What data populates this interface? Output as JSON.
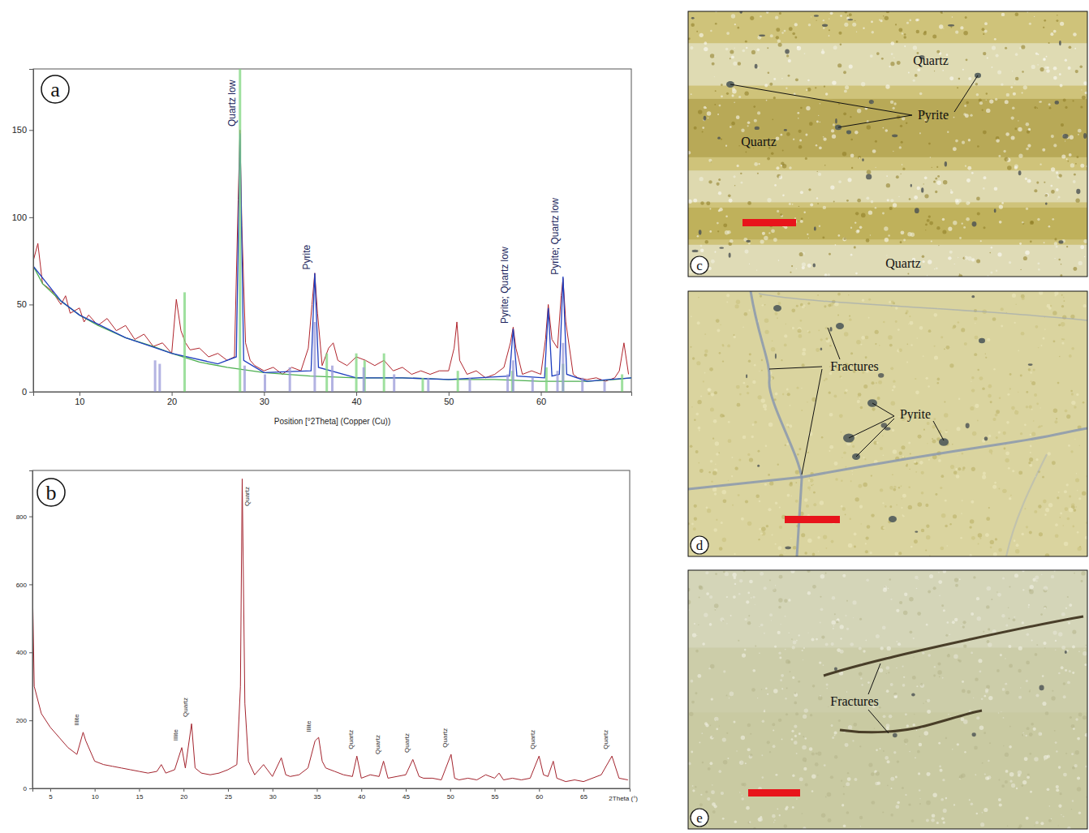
{
  "chart_data": [
    {
      "type": "line",
      "title": "a",
      "x_label": "Position [°2Theta] (Copper (Cu))",
      "xlim": [
        5,
        69.8
      ],
      "xticks": [
        10,
        20,
        30,
        40,
        50,
        60
      ],
      "ylim": [
        0,
        185
      ],
      "yticks": [
        0,
        50,
        100,
        150
      ],
      "grid": false,
      "series": [
        {
          "type": "line",
          "color": "#b0242c",
          "x": [
            5,
            5.5,
            6,
            7,
            8,
            8.5,
            9,
            10,
            10.5,
            11,
            12,
            13,
            14,
            15,
            16,
            17,
            18,
            19,
            20,
            20.5,
            21,
            21.5,
            22,
            23,
            24,
            25,
            26,
            26.8,
            27.2,
            27.4,
            27.6,
            28,
            28.5,
            29,
            30,
            31,
            32,
            33,
            34,
            34.8,
            35.2,
            35.5,
            35.8,
            36.3,
            37,
            37.5,
            38,
            39,
            40,
            41,
            42,
            43,
            44,
            45,
            46,
            47,
            48,
            49,
            50,
            50.6,
            50.9,
            51.2,
            52,
            53,
            54,
            55,
            56,
            56.7,
            57,
            57.3,
            58,
            59,
            60,
            60.5,
            60.8,
            61.2,
            61.8,
            62.2,
            62.4,
            62.7,
            63.5,
            64,
            65,
            66,
            67,
            68,
            68.5,
            69,
            69.5
          ],
          "values": [
            75,
            85,
            62,
            58,
            50,
            55,
            45,
            48,
            40,
            44,
            38,
            42,
            35,
            38,
            30,
            33,
            26,
            28,
            22,
            53,
            35,
            28,
            24,
            25,
            20,
            22,
            18,
            20,
            110,
            150,
            95,
            28,
            18,
            15,
            12,
            14,
            10,
            14,
            12,
            25,
            50,
            68,
            45,
            15,
            25,
            28,
            18,
            15,
            20,
            18,
            15,
            18,
            12,
            14,
            10,
            12,
            10,
            12,
            12,
            25,
            40,
            18,
            10,
            12,
            8,
            10,
            14,
            28,
            37,
            25,
            10,
            12,
            10,
            30,
            50,
            30,
            25,
            55,
            65,
            40,
            10,
            8,
            7,
            8,
            6,
            8,
            12,
            28,
            10
          ]
        },
        {
          "type": "line",
          "color": "#4caf50",
          "x": [
            5,
            6,
            8,
            10,
            12,
            15,
            18,
            20,
            23,
            26,
            30,
            35,
            40,
            45,
            50,
            55,
            60,
            65,
            68,
            69.8
          ],
          "values": [
            72,
            62,
            52,
            44,
            38,
            31,
            26,
            22,
            17,
            14,
            11,
            9,
            8,
            8,
            7,
            7,
            6,
            6,
            7,
            8
          ]
        },
        {
          "type": "line",
          "color": "#1f3fbf",
          "x": [
            5,
            8,
            10,
            15,
            20,
            25,
            27.0,
            27.4,
            27.8,
            30,
            35.1,
            35.5,
            35.9,
            40,
            45,
            50,
            56.6,
            57,
            57.4,
            60.4,
            60.8,
            61.2,
            62.0,
            62.4,
            62.8,
            65,
            69.8
          ],
          "values": [
            72,
            52,
            44,
            31,
            22,
            16,
            20,
            148,
            18,
            11,
            12,
            68,
            14,
            8,
            8,
            7,
            9,
            36,
            9,
            8,
            48,
            9,
            10,
            66,
            10,
            6,
            8
          ]
        },
        {
          "type": "stick",
          "color": "#7fd67f",
          "x": [
            21.4,
            27.4,
            36.8,
            40.0,
            40.9,
            43.0,
            47.2,
            51.0,
            56.9,
            60.6,
            62.4,
            68.8
          ],
          "values": [
            57,
            185,
            22,
            22,
            18,
            22,
            8,
            12,
            12,
            14,
            16,
            10
          ]
        },
        {
          "type": "stick",
          "color": "#9a9ad8",
          "x": [
            18.2,
            18.7,
            27.9,
            30.1,
            32.8,
            35.5,
            37.4,
            40.8,
            44.1,
            47.8,
            52.3,
            56.4,
            57.0,
            59.1,
            61.8,
            62.4,
            64.5,
            66.9
          ],
          "values": [
            18,
            16,
            15,
            10,
            14,
            40,
            15,
            14,
            10,
            8,
            8,
            10,
            18,
            8,
            12,
            28,
            8,
            6
          ]
        }
      ],
      "annotations": [
        {
          "x": 27.4,
          "y": 152,
          "text": "Quartz low"
        },
        {
          "x": 35.5,
          "y": 70,
          "text": "Pyrite"
        },
        {
          "x": 57,
          "y": 39,
          "text": "Pyrite; Quartz low"
        },
        {
          "x": 62.4,
          "y": 67,
          "text": "Pyrite; Quartz low"
        }
      ]
    },
    {
      "type": "line",
      "title": "b",
      "x_label": "2Theta (°)",
      "xlim": [
        3,
        70.2
      ],
      "xticks": [
        5,
        10,
        15,
        20,
        25,
        30,
        35,
        40,
        45,
        50,
        55,
        60,
        65
      ],
      "ylim": [
        0,
        935
      ],
      "yticks": [
        0,
        200,
        400,
        600,
        800
      ],
      "grid": false,
      "series": [
        {
          "type": "line",
          "color": "#a3232d",
          "x": [
            3,
            3.2,
            4,
            5,
            6,
            7,
            8,
            8.7,
            9,
            10,
            11,
            12,
            13,
            14,
            15,
            16,
            17,
            17.5,
            18,
            19,
            19.8,
            20.2,
            20.9,
            21.3,
            22,
            23,
            24,
            25,
            26,
            26.4,
            26.6,
            26.9,
            27.3,
            28,
            29,
            30,
            31,
            31.5,
            32,
            33,
            34,
            34.8,
            35.2,
            35.6,
            36,
            37,
            38,
            39,
            39.5,
            40,
            41,
            42,
            42.5,
            43,
            44,
            45,
            45.8,
            46.5,
            47,
            48,
            49,
            50.1,
            50.5,
            51,
            52,
            53,
            54,
            55,
            55.5,
            56,
            57,
            58,
            59,
            60,
            60.5,
            61,
            61.6,
            62,
            63,
            64,
            65,
            66,
            67,
            68.2,
            69,
            70
          ],
          "values": [
            600,
            300,
            220,
            180,
            150,
            120,
            100,
            165,
            140,
            80,
            70,
            65,
            60,
            55,
            50,
            45,
            50,
            70,
            45,
            55,
            120,
            60,
            190,
            60,
            45,
            40,
            45,
            55,
            70,
            300,
            910,
            250,
            80,
            40,
            70,
            35,
            90,
            40,
            35,
            40,
            60,
            140,
            150,
            80,
            60,
            50,
            40,
            35,
            95,
            30,
            40,
            35,
            80,
            30,
            35,
            40,
            85,
            35,
            30,
            30,
            25,
            100,
            30,
            25,
            30,
            25,
            40,
            30,
            45,
            25,
            30,
            25,
            30,
            95,
            40,
            35,
            80,
            30,
            20,
            25,
            20,
            30,
            40,
            95,
            30,
            25
          ]
        }
      ],
      "annotations": [
        {
          "x": 8.7,
          "y": 185,
          "text": "Illite"
        },
        {
          "x": 19.8,
          "y": 140,
          "text": "Illite"
        },
        {
          "x": 20.9,
          "y": 210,
          "text": "Quartz"
        },
        {
          "x": 27.8,
          "y": 830,
          "text": "Quartz"
        },
        {
          "x": 34.8,
          "y": 165,
          "text": "Illite"
        },
        {
          "x": 39.5,
          "y": 115,
          "text": "Quartz"
        },
        {
          "x": 42.5,
          "y": 100,
          "text": "Quartz"
        },
        {
          "x": 45.8,
          "y": 105,
          "text": "Quartz"
        },
        {
          "x": 50.1,
          "y": 120,
          "text": "Quartz"
        },
        {
          "x": 60,
          "y": 115,
          "text": "Quartz"
        },
        {
          "x": 68.2,
          "y": 115,
          "text": "Quartz"
        }
      ]
    }
  ],
  "micrographs": [
    {
      "letter": "c",
      "labels": [
        "Quartz",
        "Pyrite",
        "Quartz",
        "Quartz"
      ]
    },
    {
      "letter": "d",
      "labels": [
        "Fractures",
        "Pyrite"
      ]
    },
    {
      "letter": "e",
      "labels": [
        "Fractures"
      ]
    }
  ]
}
